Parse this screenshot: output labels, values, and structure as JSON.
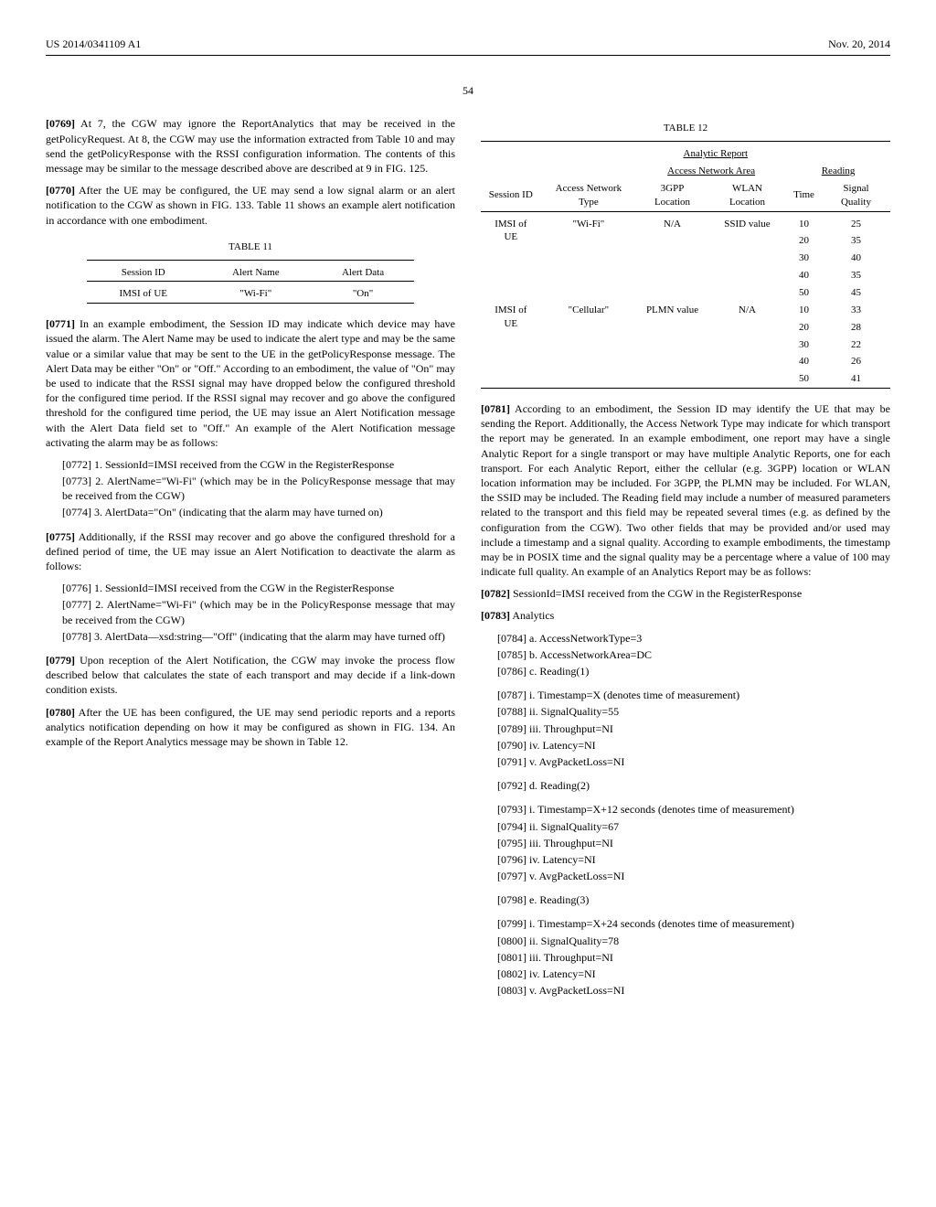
{
  "header": {
    "pub_no": "US 2014/0341109 A1",
    "date": "Nov. 20, 2014",
    "page": "54"
  },
  "left": {
    "p0769": "[0769]   At 7, the CGW may ignore the ReportAnalytics that may be received in the getPolicyRequest. At 8, the CGW may use the information extracted from Table 10 and may send the getPolicyResponse with the RSSI configuration information. The contents of this message may be similar to the message described above are described at 9 in FIG. 125.",
    "p0770": "[0770]   After the UE may be configured, the UE may send a low signal alarm or an alert notification to the CGW as shown in FIG. 133. Table 11 shows an example alert notification in accordance with one embodiment.",
    "table11": {
      "caption": "TABLE 11",
      "columns": [
        "Session ID",
        "Alert Name",
        "Alert Data"
      ],
      "rows": [
        [
          "IMSI of UE",
          "\"Wi-Fi\"",
          "\"On\""
        ]
      ]
    },
    "p0771": "[0771]   In an example embodiment, the Session ID may indicate which device may have issued the alarm. The Alert Name may be used to indicate the alert type and may be the same value or a similar value that may be sent to the UE in the getPolicyResponse message. The Alert Data may be either \"On\" or \"Off.\" According to an embodiment, the value of \"On\" may be used to indicate that the RSSI signal may have dropped below the configured threshold for the configured time period. If the RSSI signal may recover and go above the configured threshold for the configured time period, the UE may issue an Alert Notification message with the Alert Data field set to \"Off.\" An example of the Alert Notification message activating the alarm may be as follows:",
    "p0772": "[0772]   1. SessionId=IMSI received from the CGW in the RegisterResponse",
    "p0773": "[0773]   2. AlertName=\"Wi-Fi\" (which may be in the PolicyResponse message that may be received from the CGW)",
    "p0774": "[0774]   3. AlertData=\"On\" (indicating that the alarm may have turned on)",
    "p0775": "[0775]   Additionally, if the RSSI may recover and go above the configured threshold for a defined period of time, the UE may issue an Alert Notification to deactivate the alarm as follows:",
    "p0776": "[0776]   1. SessionId=IMSI received from the CGW in the RegisterResponse",
    "p0777": "[0777]   2. AlertName=\"Wi-Fi\" (which may be in the PolicyResponse message that may be received from the CGW)",
    "p0778": "[0778]   3. AlertData—xsd:string—\"Off\" (indicating that the alarm may have turned off)",
    "p0779": "[0779]   Upon reception of the Alert Notification, the CGW may invoke the process flow described below that calculates the state of each transport and may decide if a link-down condition exists.",
    "p0780": "[0780]   After the UE has been configured, the UE may send periodic reports and a reports analytics notification depending on how it may be configured as shown in FIG. 134. An example of the Report Analytics message may be shown in Table 12."
  },
  "right": {
    "table12": {
      "caption": "TABLE 12",
      "super_header": "Analytic Report",
      "group_a": "Access Network Area",
      "group_b": "Reading",
      "columns": [
        "Session ID",
        "Access Network Type",
        "3GPP Location",
        "WLAN Location",
        "Time",
        "Signal Quality"
      ],
      "row1": {
        "sid": "IMSI of UE",
        "type": "\"Wi-Fi\"",
        "g3": "N/A",
        "wlan": "SSID value",
        "times": [
          10,
          20,
          30,
          40,
          50
        ],
        "sq": [
          25,
          35,
          40,
          35,
          45
        ]
      },
      "row2": {
        "sid": "IMSI of UE",
        "type": "\"Cellular\"",
        "g3": "PLMN value",
        "wlan": "N/A",
        "times": [
          10,
          20,
          30,
          40,
          50
        ],
        "sq": [
          33,
          28,
          22,
          26,
          41
        ]
      }
    },
    "p0781": "[0781]   According to an embodiment, the Session ID may identify the UE that may be sending the Report. Additionally, the Access Network Type may indicate for which transport the report may be generated. In an example embodiment, one report may have a single Analytic Report for a single transport or may have multiple Analytic Reports, one for each transport. For each Analytic Report, either the cellular (e.g. 3GPP) location or WLAN location information may be included. For 3GPP, the PLMN may be included. For WLAN, the SSID may be included. The Reading field may include a number of measured parameters related to the transport and this field may be repeated several times (e.g. as defined by the configuration from the CGW). Two other fields that may be provided and/or used may include a timestamp and a signal quality. According to example embodiments, the timestamp may be in POSIX time and the signal quality may be a percentage where a value of 100 may indicate full quality. An example of an Analytics Report may be as follows:",
    "p0782": "[0782]   SessionId=IMSI received from the CGW in the RegisterResponse",
    "p0783": "[0783]   Analytics",
    "p0784": "[0784]   a. AccessNetworkType=3",
    "p0785": "[0785]   b. AccessNetworkArea=DC",
    "p0786": "[0786]   c. Reading(1)",
    "p0787": "[0787]   i. Timestamp=X (denotes time of measurement)",
    "p0788": "[0788]   ii. SignalQuality=55",
    "p0789": "[0789]   iii. Throughput=NI",
    "p0790": "[0790]   iv. Latency=NI",
    "p0791": "[0791]   v. AvgPacketLoss=NI",
    "p0792": "[0792]   d. Reading(2)",
    "p0793": "[0793]   i. Timestamp=X+12 seconds (denotes time of measurement)",
    "p0794": "[0794]   ii. SignalQuality=67",
    "p0795": "[0795]   iii. Throughput=NI",
    "p0796": "[0796]   iv. Latency=NI",
    "p0797": "[0797]   v. AvgPacketLoss=NI",
    "p0798": "[0798]   e. Reading(3)",
    "p0799": "[0799]   i. Timestamp=X+24 seconds (denotes time of measurement)",
    "p0800": "[0800]   ii. SignalQuality=78",
    "p0801": "[0801]   iii. Throughput=NI",
    "p0802": "[0802]   iv. Latency=NI",
    "p0803": "[0803]   v. AvgPacketLoss=NI"
  }
}
